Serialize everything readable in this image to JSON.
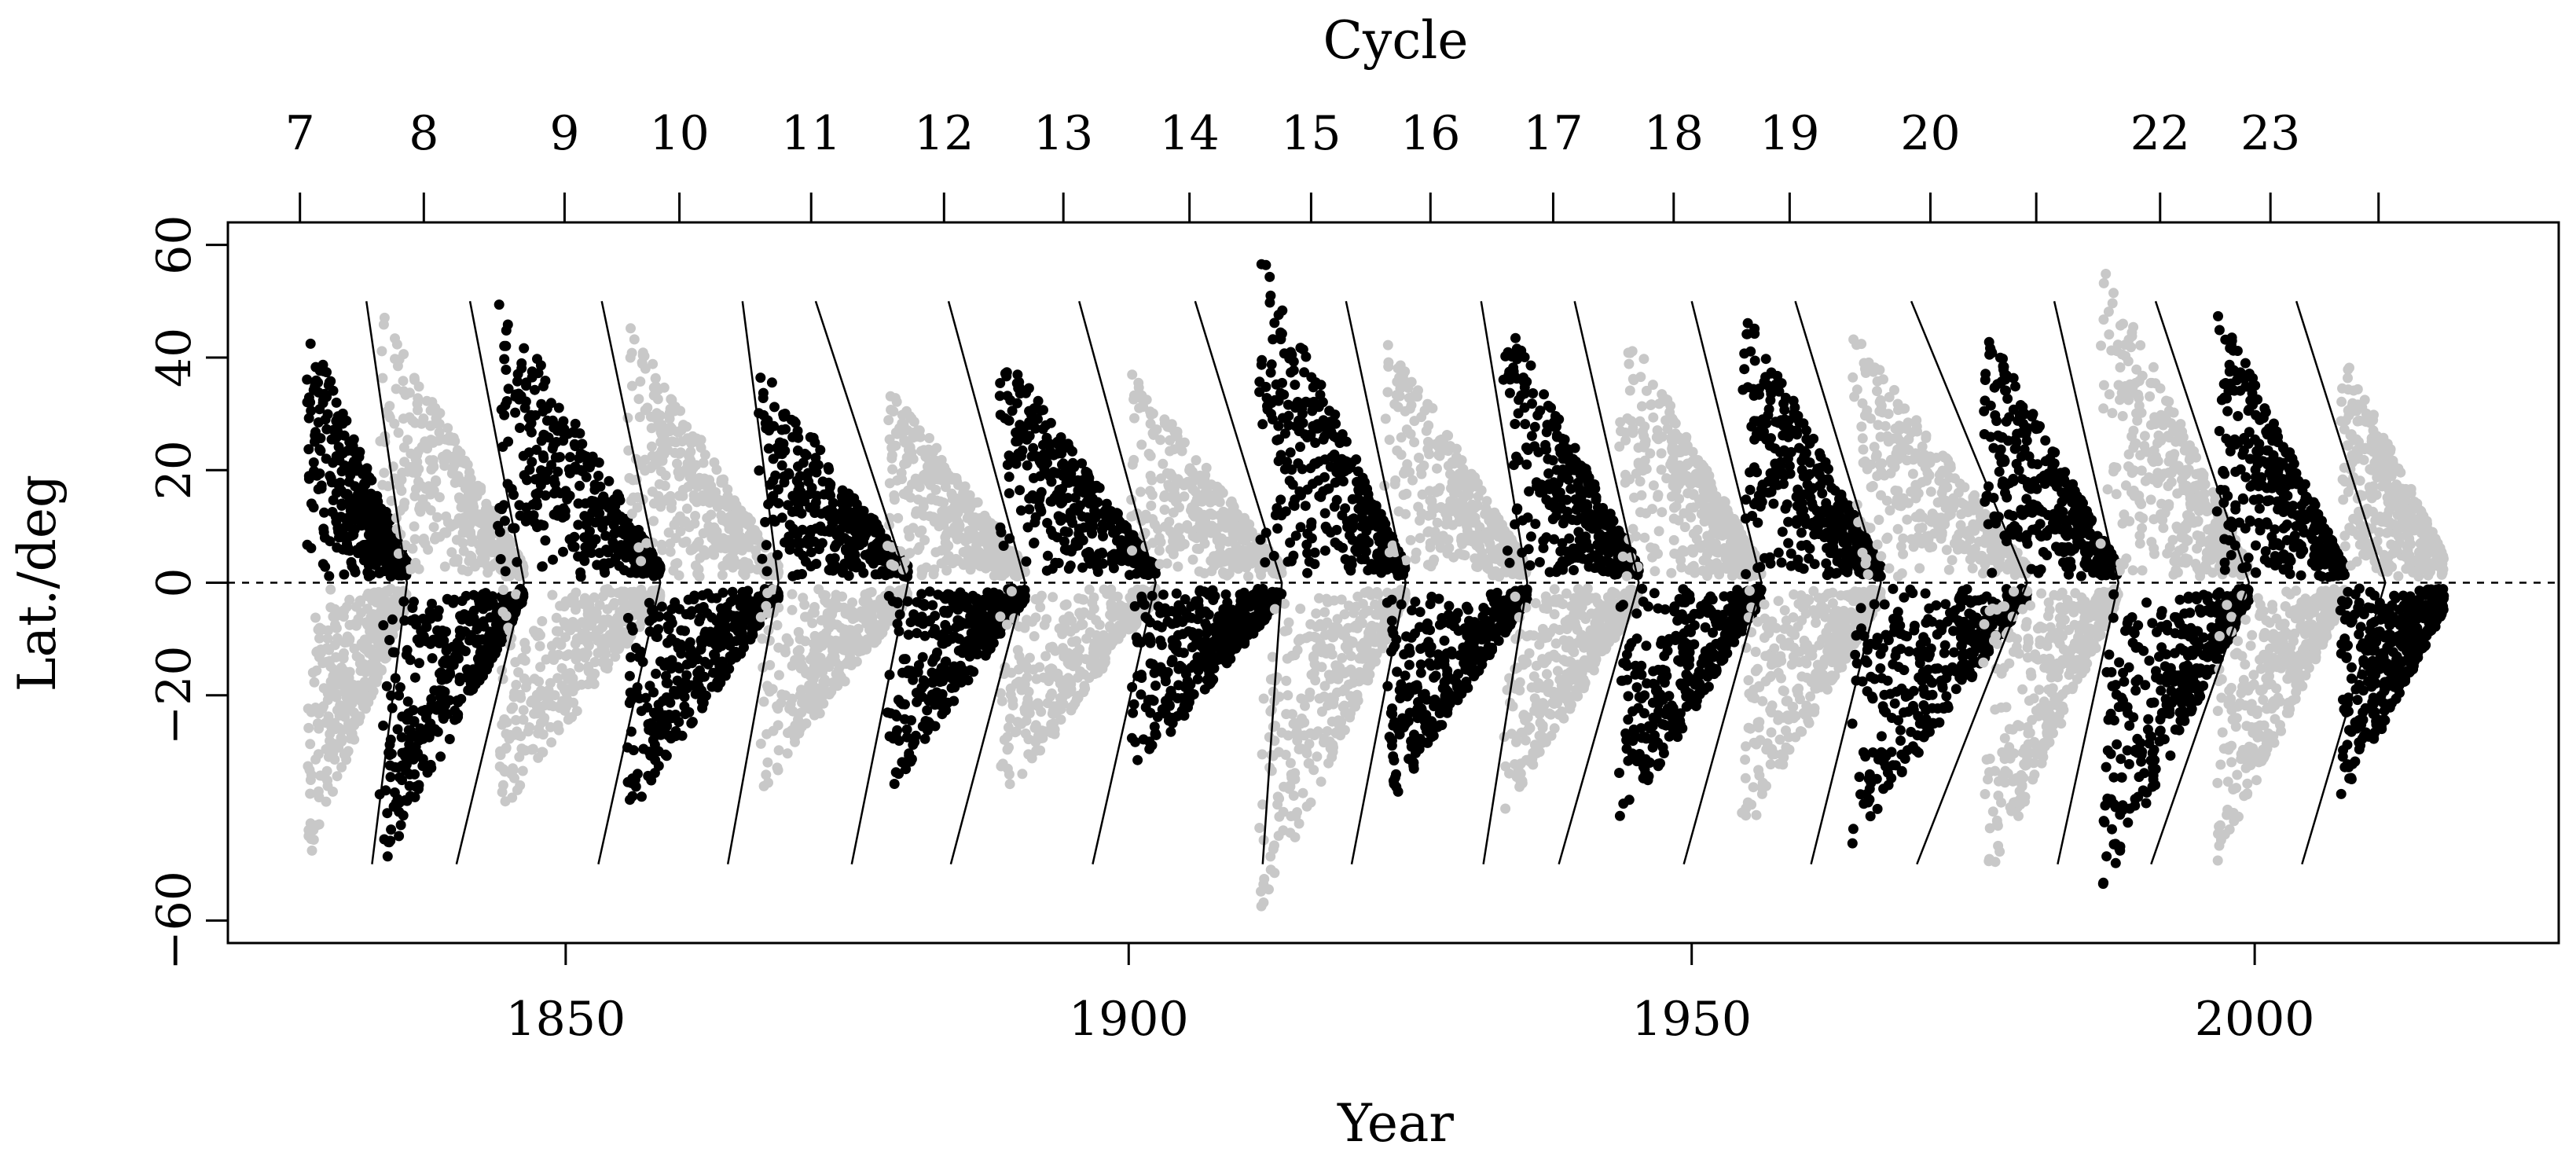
{
  "chart_data": {
    "type": "scatter",
    "title": "",
    "xlabel": "Year",
    "ylabel": "Lat./deg",
    "top_axis_label": "Cycle",
    "xlim": [
      1820,
      2027
    ],
    "ylim": [
      -64,
      64
    ],
    "x_ticks": [
      {
        "value": 1850,
        "label": "1850"
      },
      {
        "value": 1900,
        "label": "1900"
      },
      {
        "value": 1950,
        "label": "1950"
      },
      {
        "value": 2000,
        "label": "2000"
      }
    ],
    "y_ticks": [
      {
        "value": -60,
        "label": "−60"
      },
      {
        "value": -20,
        "label": "−20"
      },
      {
        "value": 0,
        "label": "0"
      },
      {
        "value": 20,
        "label": "20"
      },
      {
        "value": 40,
        "label": "40"
      },
      {
        "value": 60,
        "label": "60"
      }
    ],
    "cycle_ticks": [
      {
        "year": 1826.4,
        "label": "7"
      },
      {
        "year": 1837.4,
        "label": "8"
      },
      {
        "year": 1849.9,
        "label": "9"
      },
      {
        "year": 1860.1,
        "label": "10"
      },
      {
        "year": 1871.8,
        "label": "11"
      },
      {
        "year": 1883.6,
        "label": "12"
      },
      {
        "year": 1894.2,
        "label": "13"
      },
      {
        "year": 1905.4,
        "label": "14"
      },
      {
        "year": 1916.2,
        "label": "15"
      },
      {
        "year": 1926.8,
        "label": "16"
      },
      {
        "year": 1937.7,
        "label": "17"
      },
      {
        "year": 1948.4,
        "label": "18"
      },
      {
        "year": 1958.7,
        "label": "19"
      },
      {
        "year": 1971.2,
        "label": "20"
      },
      {
        "year": 1980.6,
        "label": ""
      },
      {
        "year": 1991.6,
        "label": "22"
      },
      {
        "year": 2001.4,
        "label": "23"
      },
      {
        "year": 2011.0,
        "label": ""
      }
    ],
    "equator_line": {
      "y": 0,
      "style": "dashed"
    },
    "boundary_chevrons": [
      {
        "x_start": 1832.3,
        "x_tip": 1835.9,
        "x_end": 1832.8
      },
      {
        "x_start": 1841.5,
        "x_tip": 1846.3,
        "x_end": 1840.3
      },
      {
        "x_start": 1853.2,
        "x_tip": 1858.4,
        "x_end": 1852.9
      },
      {
        "x_start": 1865.7,
        "x_tip": 1868.9,
        "x_end": 1864.4
      },
      {
        "x_start": 1872.2,
        "x_tip": 1880.4,
        "x_end": 1875.4
      },
      {
        "x_start": 1884.0,
        "x_tip": 1890.8,
        "x_end": 1884.2
      },
      {
        "x_start": 1895.6,
        "x_tip": 1902.4,
        "x_end": 1896.8
      },
      {
        "x_start": 1905.9,
        "x_tip": 1913.6,
        "x_end": 1911.9
      },
      {
        "x_start": 1919.3,
        "x_tip": 1924.6,
        "x_end": 1919.8
      },
      {
        "x_start": 1931.3,
        "x_tip": 1935.4,
        "x_end": 1931.5
      },
      {
        "x_start": 1939.6,
        "x_tip": 1945.3,
        "x_end": 1938.2
      },
      {
        "x_start": 1950.0,
        "x_tip": 1956.2,
        "x_end": 1949.3
      },
      {
        "x_start": 1959.2,
        "x_tip": 1966.8,
        "x_end": 1960.6
      },
      {
        "x_start": 1969.5,
        "x_tip": 1979.8,
        "x_end": 1970.0
      },
      {
        "x_start": 1982.2,
        "x_tip": 1987.9,
        "x_end": 1982.5
      },
      {
        "x_start": 1991.2,
        "x_tip": 1999.5,
        "x_end": 1990.8
      },
      {
        "x_start": 2003.7,
        "x_tip": 2011.6,
        "x_end": 2004.2
      }
    ],
    "boundary_lat_extent": [
      -50,
      50
    ],
    "point_clusters": [
      {
        "hemisphere": "north",
        "color": "#000000",
        "x_start": 1827.0,
        "x_end": 1835.9,
        "lat_max": 46,
        "lat_at_end": 4
      },
      {
        "hemisphere": "north",
        "color": "#c8c8c8",
        "x_start": 1833.4,
        "x_end": 1846.3,
        "lat_max": 50,
        "lat_at_end": 3
      },
      {
        "hemisphere": "north",
        "color": "#000000",
        "x_start": 1843.9,
        "x_end": 1858.4,
        "lat_max": 52,
        "lat_at_end": 3
      },
      {
        "hemisphere": "north",
        "color": "#c8c8c8",
        "x_start": 1855.4,
        "x_end": 1868.9,
        "lat_max": 47,
        "lat_at_end": 3
      },
      {
        "hemisphere": "north",
        "color": "#000000",
        "x_start": 1867.1,
        "x_end": 1880.4,
        "lat_max": 39,
        "lat_at_end": 3
      },
      {
        "hemisphere": "north",
        "color": "#c8c8c8",
        "x_start": 1878.5,
        "x_end": 1890.8,
        "lat_max": 36,
        "lat_at_end": 3
      },
      {
        "hemisphere": "north",
        "color": "#000000",
        "x_start": 1888.5,
        "x_end": 1902.4,
        "lat_max": 42,
        "lat_at_end": 3
      },
      {
        "hemisphere": "north",
        "color": "#c8c8c8",
        "x_start": 1900.2,
        "x_end": 1913.6,
        "lat_max": 38,
        "lat_at_end": 3
      },
      {
        "hemisphere": "north",
        "color": "#000000",
        "x_start": 1911.6,
        "x_end": 1924.6,
        "lat_max": 59,
        "lat_at_end": 3
      },
      {
        "hemisphere": "north",
        "color": "#c8c8c8",
        "x_start": 1922.7,
        "x_end": 1935.4,
        "lat_max": 46,
        "lat_at_end": 3
      },
      {
        "hemisphere": "north",
        "color": "#000000",
        "x_start": 1933.2,
        "x_end": 1945.3,
        "lat_max": 48,
        "lat_at_end": 3
      },
      {
        "hemisphere": "north",
        "color": "#c8c8c8",
        "x_start": 1943.5,
        "x_end": 1956.2,
        "lat_max": 48,
        "lat_at_end": 3
      },
      {
        "hemisphere": "north",
        "color": "#000000",
        "x_start": 1954.4,
        "x_end": 1966.8,
        "lat_max": 50,
        "lat_at_end": 3
      },
      {
        "hemisphere": "north",
        "color": "#c8c8c8",
        "x_start": 1964.2,
        "x_end": 1979.8,
        "lat_max": 45,
        "lat_at_end": 3
      },
      {
        "hemisphere": "north",
        "color": "#000000",
        "x_start": 1975.9,
        "x_end": 1987.9,
        "lat_max": 46,
        "lat_at_end": 3
      },
      {
        "hemisphere": "north",
        "color": "#c8c8c8",
        "x_start": 1986.3,
        "x_end": 1999.5,
        "lat_max": 58,
        "lat_at_end": 3
      },
      {
        "hemisphere": "north",
        "color": "#000000",
        "x_start": 1996.6,
        "x_end": 2008.0,
        "lat_max": 50,
        "lat_at_end": 3
      },
      {
        "hemisphere": "north",
        "color": "#c8c8c8",
        "x_start": 2007.6,
        "x_end": 2016.8,
        "lat_max": 42,
        "lat_at_end": 5
      },
      {
        "hemisphere": "south",
        "color": "#c8c8c8",
        "x_start": 1827.0,
        "x_end": 1835.9,
        "lat_max": -50,
        "lat_at_end": -4
      },
      {
        "hemisphere": "south",
        "color": "#000000",
        "x_start": 1833.4,
        "x_end": 1846.3,
        "lat_max": -52,
        "lat_at_end": -3
      },
      {
        "hemisphere": "south",
        "color": "#c8c8c8",
        "x_start": 1843.9,
        "x_end": 1858.4,
        "lat_max": -42,
        "lat_at_end": -3
      },
      {
        "hemisphere": "south",
        "color": "#000000",
        "x_start": 1855.4,
        "x_end": 1868.9,
        "lat_max": -42,
        "lat_at_end": -3
      },
      {
        "hemisphere": "south",
        "color": "#c8c8c8",
        "x_start": 1867.1,
        "x_end": 1880.4,
        "lat_max": -38,
        "lat_at_end": -3
      },
      {
        "hemisphere": "south",
        "color": "#000000",
        "x_start": 1878.5,
        "x_end": 1890.8,
        "lat_max": -38,
        "lat_at_end": -3
      },
      {
        "hemisphere": "south",
        "color": "#c8c8c8",
        "x_start": 1888.5,
        "x_end": 1902.4,
        "lat_max": -40,
        "lat_at_end": -3
      },
      {
        "hemisphere": "south",
        "color": "#000000",
        "x_start": 1900.2,
        "x_end": 1913.6,
        "lat_max": -35,
        "lat_at_end": -3
      },
      {
        "hemisphere": "south",
        "color": "#c8c8c8",
        "x_start": 1911.6,
        "x_end": 1924.6,
        "lat_max": -59,
        "lat_at_end": -3
      },
      {
        "hemisphere": "south",
        "color": "#000000",
        "x_start": 1922.7,
        "x_end": 1935.4,
        "lat_max": -41,
        "lat_at_end": -3
      },
      {
        "hemisphere": "south",
        "color": "#c8c8c8",
        "x_start": 1933.2,
        "x_end": 1945.3,
        "lat_max": -42,
        "lat_at_end": -3
      },
      {
        "hemisphere": "south",
        "color": "#000000",
        "x_start": 1943.5,
        "x_end": 1956.2,
        "lat_max": -45,
        "lat_at_end": -3
      },
      {
        "hemisphere": "south",
        "color": "#c8c8c8",
        "x_start": 1954.4,
        "x_end": 1966.8,
        "lat_max": -46,
        "lat_at_end": -3
      },
      {
        "hemisphere": "south",
        "color": "#000000",
        "x_start": 1964.2,
        "x_end": 1979.8,
        "lat_max": -47,
        "lat_at_end": -3
      },
      {
        "hemisphere": "south",
        "color": "#c8c8c8",
        "x_start": 1975.9,
        "x_end": 1987.9,
        "lat_max": -55,
        "lat_at_end": -3
      },
      {
        "hemisphere": "south",
        "color": "#000000",
        "x_start": 1986.3,
        "x_end": 1999.5,
        "lat_max": -56,
        "lat_at_end": -3
      },
      {
        "hemisphere": "south",
        "color": "#c8c8c8",
        "x_start": 1996.6,
        "x_end": 2008.0,
        "lat_max": -50,
        "lat_at_end": -3
      },
      {
        "hemisphere": "south",
        "color": "#000000",
        "x_start": 2007.6,
        "x_end": 2016.8,
        "lat_max": -40,
        "lat_at_end": -5
      }
    ],
    "colors": {
      "alternate_cycle": "#000000",
      "other_cycle": "#c8c8c8",
      "boundaries": "#000000"
    },
    "grid": false,
    "legend": "none"
  }
}
